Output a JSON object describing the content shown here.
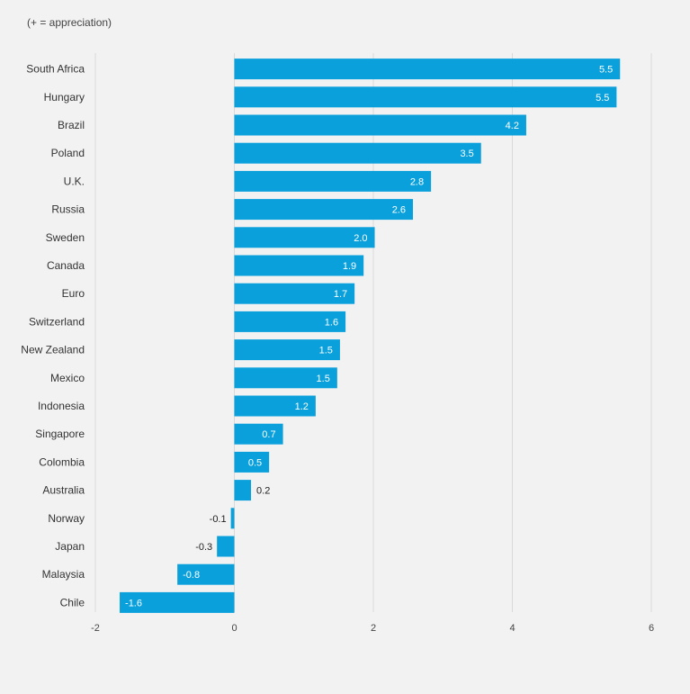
{
  "note": "(+ = appreciation)",
  "chart_data": {
    "type": "bar",
    "orientation": "horizontal",
    "categories": [
      "South Africa",
      "Hungary",
      "Brazil",
      "Poland",
      "U.K.",
      "Russia",
      "Sweden",
      "Canada",
      "Euro",
      "Switzerland",
      "New Zealand",
      "Mexico",
      "Indonesia",
      "Singapore",
      "Colombia",
      "Australia",
      "Norway",
      "Japan",
      "Malaysia",
      "Chile"
    ],
    "values": [
      5.55,
      5.5,
      4.2,
      3.55,
      2.83,
      2.57,
      2.02,
      1.86,
      1.73,
      1.6,
      1.52,
      1.48,
      1.17,
      0.7,
      0.5,
      0.24,
      -0.05,
      -0.25,
      -0.82,
      -1.65
    ],
    "labels": [
      "5.5",
      "5.5",
      "4.2",
      "3.5",
      "2.8",
      "2.6",
      "2.0",
      "1.9",
      "1.7",
      "1.6",
      "1.5",
      "1.5",
      "1.2",
      "0.7",
      "0.5",
      "0.2",
      "-0.1",
      "-0.3",
      "-0.8",
      "-1.6"
    ],
    "xticks": [
      -2,
      0,
      2,
      4,
      6
    ],
    "xtick_labels": [
      "-2",
      "0",
      "2",
      "4",
      "6"
    ],
    "xlim": [
      -2,
      6
    ],
    "bar_color": "#0aa0dc",
    "grid": true,
    "grid_color": "#d9d9d9"
  }
}
